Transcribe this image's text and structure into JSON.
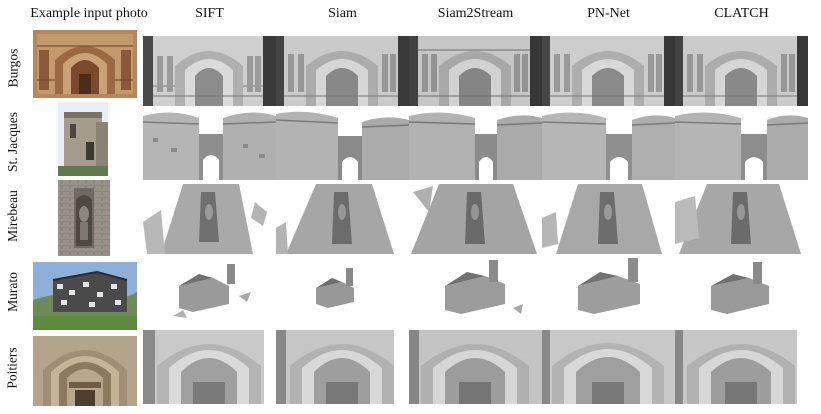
{
  "header": {
    "photo_column": "Example input photo",
    "methods": [
      "SIFT",
      "Siam",
      "Siam2Stream",
      "PN-Net",
      "CLATCH"
    ]
  },
  "rows": [
    {
      "label": "Burgos",
      "photo_bg": "#b4885d",
      "photo_accent": "#7a4a2a",
      "kind": "portal-front"
    },
    {
      "label": "St. Jacques",
      "photo_bg": "#d9d6cf",
      "photo_accent": "#7b7466",
      "kind": "towers"
    },
    {
      "label": "Mirebeau",
      "photo_bg": "#8d8a80",
      "photo_accent": "#5a574f",
      "kind": "wall-niche"
    },
    {
      "label": "Murato",
      "photo_bg": "#8db0d8",
      "photo_accent": "#3b3b3b",
      "kind": "church"
    },
    {
      "label": "Poitiers",
      "photo_bg": "#b5a48c",
      "photo_accent": "#6e5c46",
      "kind": "arch-portal"
    }
  ],
  "colors": {
    "mesh_light": "#d6d6d6",
    "mesh_mid": "#a9a9a9",
    "mesh_dark": "#6f6f6f",
    "mesh_shadow": "#3a3a3a"
  }
}
